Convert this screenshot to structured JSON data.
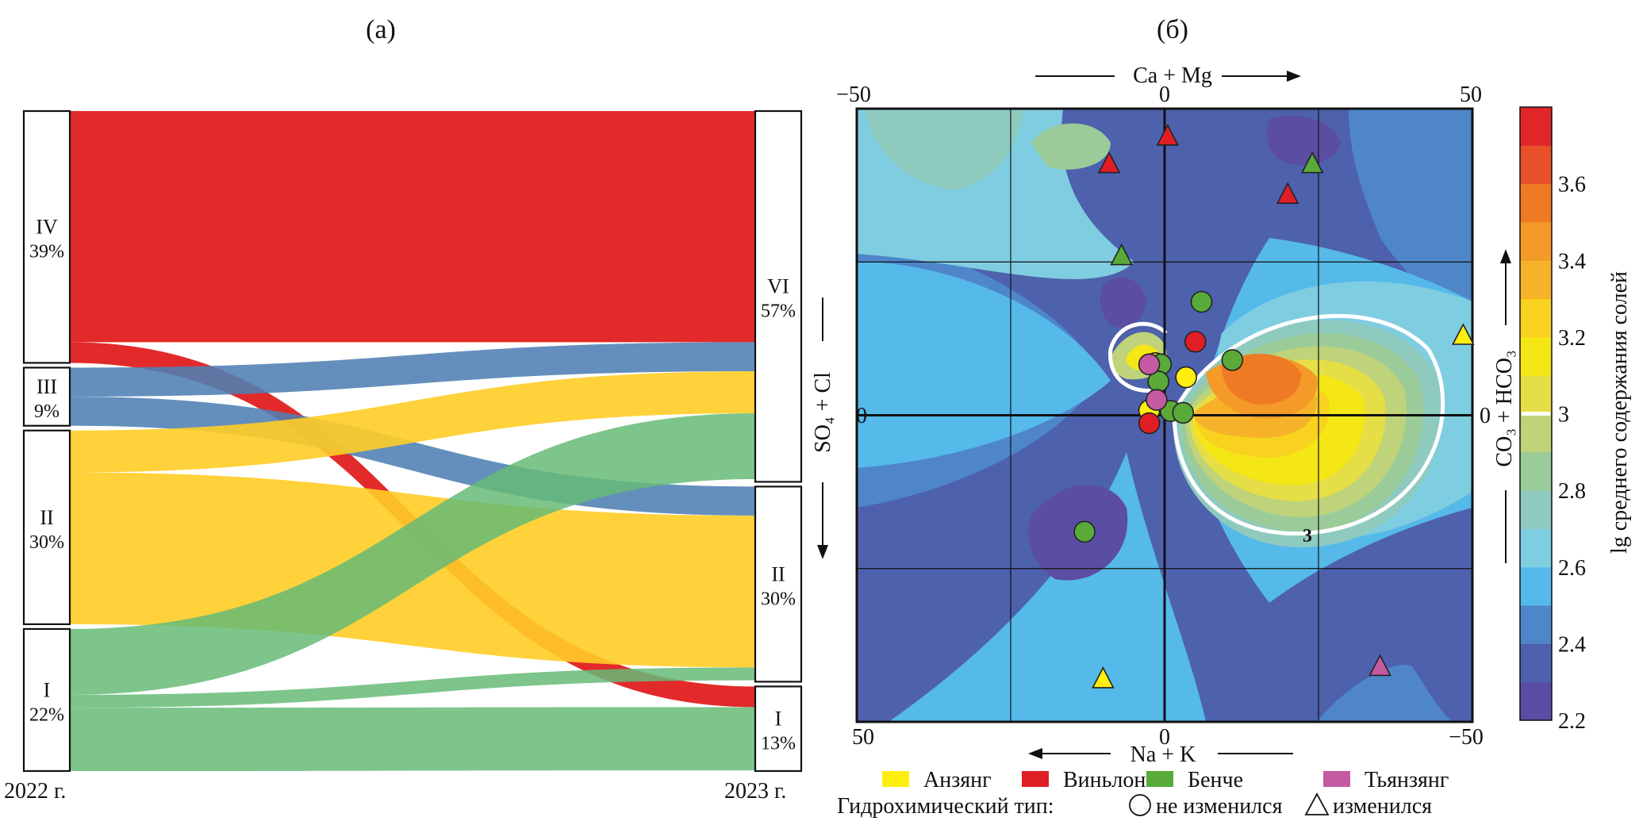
{
  "panels": {
    "a_label": "(а)",
    "b_label": "(б)"
  },
  "chart_data": [
    {
      "type": "sankey",
      "panel": "(а)",
      "left_year": "2022 г.",
      "right_year": "2023 г.",
      "left_nodes": [
        {
          "id": "IV",
          "pct": "39%",
          "value": 39
        },
        {
          "id": "III",
          "pct": "9%",
          "value": 9
        },
        {
          "id": "II",
          "pct": "30%",
          "value": 30
        },
        {
          "id": "I",
          "pct": "22%",
          "value": 22
        }
      ],
      "right_nodes": [
        {
          "id": "VI",
          "pct": "57%",
          "value": 57
        },
        {
          "id": "II",
          "pct": "30%",
          "value": 30
        },
        {
          "id": "I",
          "pct": "13%",
          "value": 13
        }
      ],
      "flows": [
        {
          "from": "IV",
          "to": "VI",
          "value": 35.8,
          "color": "#e32a2a",
          "opacity": 1.0
        },
        {
          "from": "IV",
          "to": "I",
          "value": 3.2,
          "color": "#e32a2a",
          "opacity": 1.0
        },
        {
          "from": "III",
          "to": "VI",
          "value": 4.5,
          "color": "#4f7fb4",
          "opacity": 0.88
        },
        {
          "from": "III",
          "to": "II",
          "value": 4.5,
          "color": "#4f7fb4",
          "opacity": 0.88
        },
        {
          "from": "II",
          "to": "VI",
          "value": 6.5,
          "color": "#ffcd26",
          "opacity": 0.9
        },
        {
          "from": "II",
          "to": "II",
          "value": 23.5,
          "color": "#ffcd26",
          "opacity": 0.9
        },
        {
          "from": "I",
          "to": "VI",
          "value": 10.2,
          "color": "#66bb77",
          "opacity": 0.85
        },
        {
          "from": "I",
          "to": "II",
          "value": 2.0,
          "color": "#66bb77",
          "opacity": 0.85
        },
        {
          "from": "I",
          "to": "I",
          "value": 9.8,
          "color": "#66bb77",
          "opacity": 0.85
        }
      ]
    },
    {
      "type": "contour",
      "panel": "(б)",
      "top_axis": {
        "label": "Ca + Mg",
        "ticks": [
          "−50",
          "0",
          "50"
        ]
      },
      "bottom_axis": {
        "label": "Na + K",
        "ticks": [
          "50",
          "0",
          "−50"
        ]
      },
      "left_axis": {
        "label": "SO₄ + Cl",
        "tick": "0"
      },
      "right_axis": {
        "label": "CO₃ + HCO₃",
        "tick": "0"
      },
      "xlim": [
        -50,
        50
      ],
      "ylim": [
        -50,
        50
      ],
      "grid": true,
      "contour_label": "3",
      "colorbar": {
        "label": "lg среднего содержания солей",
        "ticks": [
          "3.6",
          "3.4",
          "3.2",
          "3",
          "2.8",
          "2.6",
          "2.4",
          "2.2"
        ],
        "levels": [
          2.2,
          2.3,
          2.4,
          2.5,
          2.6,
          2.7,
          2.8,
          2.9,
          3.0,
          3.1,
          3.2,
          3.3,
          3.4,
          3.5,
          3.6,
          3.7,
          3.8
        ],
        "colors": [
          "#5b4da3",
          "#4e61ad",
          "#4e86c9",
          "#55b9ea",
          "#7fcde0",
          "#8fcabf",
          "#9ccb9a",
          "#bed37a",
          "#e5de47",
          "#f5e615",
          "#f8d21e",
          "#f6b32a",
          "#f39a28",
          "#ef7a24",
          "#e8502a",
          "#e1262a"
        ]
      },
      "series": [
        {
          "name": "Анзянг",
          "color": "#ffee10",
          "unchanged": [
            [
              -1.5,
              8.5
            ],
            [
              -2.5,
              0.8
            ],
            [
              3.5,
              6.2
            ]
          ],
          "changed": [
            [
              -10,
              -43
            ],
            [
              48.5,
              13
            ]
          ]
        },
        {
          "name": "Виньлонг",
          "color": "#e01e26",
          "unchanged": [
            [
              5,
              12
            ],
            [
              -2.5,
              -1.3
            ]
          ],
          "changed": [
            [
              0.5,
              45.5
            ],
            [
              -9,
              41
            ],
            [
              20,
              36
            ]
          ]
        },
        {
          "name": "Бенче",
          "color": "#5aaa3a",
          "unchanged": [
            [
              6,
              18.5
            ],
            [
              11,
              9
            ],
            [
              -0.6,
              8.3
            ],
            [
              -1,
              5.5
            ],
            [
              1,
              0.7
            ],
            [
              3,
              0.4
            ],
            [
              -13,
              -19
            ]
          ],
          "changed": [
            [
              24,
              41
            ],
            [
              -7,
              26
            ]
          ]
        },
        {
          "name": "Тьянзянг",
          "color": "#c45aa2",
          "unchanged": [
            [
              -2.5,
              8.3
            ],
            [
              -1.3,
              2.5
            ]
          ],
          "changed": [
            [
              35,
              -41
            ]
          ]
        }
      ],
      "legend": {
        "line2_prefix": "Гидрохимический тип:",
        "unchanged_label": "не изменился",
        "changed_label": "изменился"
      }
    }
  ]
}
